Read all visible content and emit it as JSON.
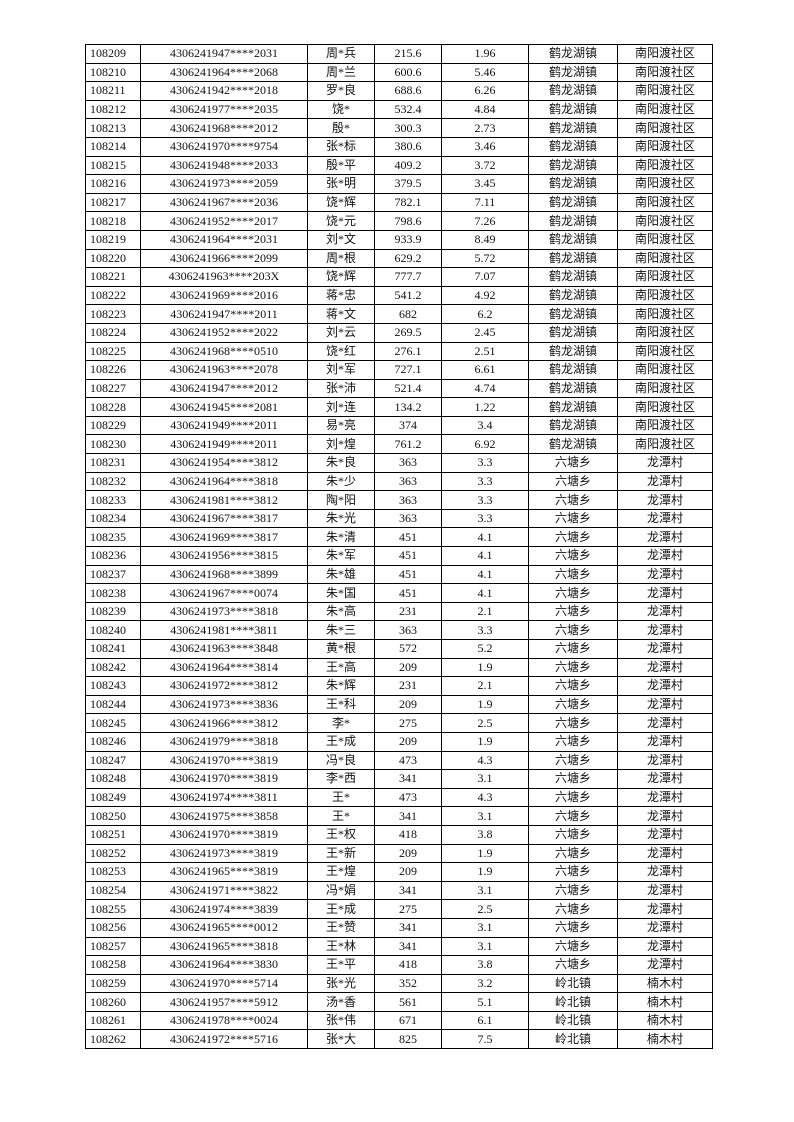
{
  "table": {
    "rows": [
      [
        "108209",
        "4306241947****2031",
        "周*兵",
        "215.6",
        "1.96",
        "鹤龙湖镇",
        "南阳渡社区"
      ],
      [
        "108210",
        "4306241964****2068",
        "周*兰",
        "600.6",
        "5.46",
        "鹤龙湖镇",
        "南阳渡社区"
      ],
      [
        "108211",
        "4306241942****2018",
        "罗*良",
        "688.6",
        "6.26",
        "鹤龙湖镇",
        "南阳渡社区"
      ],
      [
        "108212",
        "4306241977****2035",
        "饶*",
        "532.4",
        "4.84",
        "鹤龙湖镇",
        "南阳渡社区"
      ],
      [
        "108213",
        "4306241968****2012",
        "殷*",
        "300.3",
        "2.73",
        "鹤龙湖镇",
        "南阳渡社区"
      ],
      [
        "108214",
        "4306241970****9754",
        "张*标",
        "380.6",
        "3.46",
        "鹤龙湖镇",
        "南阳渡社区"
      ],
      [
        "108215",
        "4306241948****2033",
        "殷*平",
        "409.2",
        "3.72",
        "鹤龙湖镇",
        "南阳渡社区"
      ],
      [
        "108216",
        "4306241973****2059",
        "张*明",
        "379.5",
        "3.45",
        "鹤龙湖镇",
        "南阳渡社区"
      ],
      [
        "108217",
        "4306241967****2036",
        "饶*辉",
        "782.1",
        "7.11",
        "鹤龙湖镇",
        "南阳渡社区"
      ],
      [
        "108218",
        "4306241952****2017",
        "饶*元",
        "798.6",
        "7.26",
        "鹤龙湖镇",
        "南阳渡社区"
      ],
      [
        "108219",
        "4306241964****2031",
        "刘*文",
        "933.9",
        "8.49",
        "鹤龙湖镇",
        "南阳渡社区"
      ],
      [
        "108220",
        "4306241966****2099",
        "周*根",
        "629.2",
        "5.72",
        "鹤龙湖镇",
        "南阳渡社区"
      ],
      [
        "108221",
        "4306241963****203X",
        "饶*辉",
        "777.7",
        "7.07",
        "鹤龙湖镇",
        "南阳渡社区"
      ],
      [
        "108222",
        "4306241969****2016",
        "蒋*忠",
        "541.2",
        "4.92",
        "鹤龙湖镇",
        "南阳渡社区"
      ],
      [
        "108223",
        "4306241947****2011",
        "蒋*文",
        "682",
        "6.2",
        "鹤龙湖镇",
        "南阳渡社区"
      ],
      [
        "108224",
        "4306241952****2022",
        "刘*云",
        "269.5",
        "2.45",
        "鹤龙湖镇",
        "南阳渡社区"
      ],
      [
        "108225",
        "4306241968****0510",
        "饶*红",
        "276.1",
        "2.51",
        "鹤龙湖镇",
        "南阳渡社区"
      ],
      [
        "108226",
        "4306241963****2078",
        "刘*军",
        "727.1",
        "6.61",
        "鹤龙湖镇",
        "南阳渡社区"
      ],
      [
        "108227",
        "4306241947****2012",
        "张*沛",
        "521.4",
        "4.74",
        "鹤龙湖镇",
        "南阳渡社区"
      ],
      [
        "108228",
        "4306241945****2081",
        "刘*连",
        "134.2",
        "1.22",
        "鹤龙湖镇",
        "南阳渡社区"
      ],
      [
        "108229",
        "4306241949****2011",
        "易*亮",
        "374",
        "3.4",
        "鹤龙湖镇",
        "南阳渡社区"
      ],
      [
        "108230",
        "4306241949****2011",
        "刘*煌",
        "761.2",
        "6.92",
        "鹤龙湖镇",
        "南阳渡社区"
      ],
      [
        "108231",
        "4306241954****3812",
        "朱*良",
        "363",
        "3.3",
        "六塘乡",
        "龙潭村"
      ],
      [
        "108232",
        "4306241964****3818",
        "朱*少",
        "363",
        "3.3",
        "六塘乡",
        "龙潭村"
      ],
      [
        "108233",
        "4306241981****3812",
        "陶*阳",
        "363",
        "3.3",
        "六塘乡",
        "龙潭村"
      ],
      [
        "108234",
        "4306241967****3817",
        "朱*光",
        "363",
        "3.3",
        "六塘乡",
        "龙潭村"
      ],
      [
        "108235",
        "4306241969****3817",
        "朱*清",
        "451",
        "4.1",
        "六塘乡",
        "龙潭村"
      ],
      [
        "108236",
        "4306241956****3815",
        "朱*军",
        "451",
        "4.1",
        "六塘乡",
        "龙潭村"
      ],
      [
        "108237",
        "4306241968****3899",
        "朱*雄",
        "451",
        "4.1",
        "六塘乡",
        "龙潭村"
      ],
      [
        "108238",
        "4306241967****0074",
        "朱*国",
        "451",
        "4.1",
        "六塘乡",
        "龙潭村"
      ],
      [
        "108239",
        "4306241973****3818",
        "朱*高",
        "231",
        "2.1",
        "六塘乡",
        "龙潭村"
      ],
      [
        "108240",
        "4306241981****3811",
        "朱*三",
        "363",
        "3.3",
        "六塘乡",
        "龙潭村"
      ],
      [
        "108241",
        "4306241963****3848",
        "黄*根",
        "572",
        "5.2",
        "六塘乡",
        "龙潭村"
      ],
      [
        "108242",
        "4306241964****3814",
        "王*高",
        "209",
        "1.9",
        "六塘乡",
        "龙潭村"
      ],
      [
        "108243",
        "4306241972****3812",
        "朱*辉",
        "231",
        "2.1",
        "六塘乡",
        "龙潭村"
      ],
      [
        "108244",
        "4306241973****3836",
        "王*科",
        "209",
        "1.9",
        "六塘乡",
        "龙潭村"
      ],
      [
        "108245",
        "4306241966****3812",
        "李*",
        "275",
        "2.5",
        "六塘乡",
        "龙潭村"
      ],
      [
        "108246",
        "4306241979****3818",
        "王*成",
        "209",
        "1.9",
        "六塘乡",
        "龙潭村"
      ],
      [
        "108247",
        "4306241970****3819",
        "冯*良",
        "473",
        "4.3",
        "六塘乡",
        "龙潭村"
      ],
      [
        "108248",
        "4306241970****3819",
        "李*西",
        "341",
        "3.1",
        "六塘乡",
        "龙潭村"
      ],
      [
        "108249",
        "4306241974****3811",
        "王*",
        "473",
        "4.3",
        "六塘乡",
        "龙潭村"
      ],
      [
        "108250",
        "4306241975****3858",
        "王*",
        "341",
        "3.1",
        "六塘乡",
        "龙潭村"
      ],
      [
        "108251",
        "4306241970****3819",
        "王*权",
        "418",
        "3.8",
        "六塘乡",
        "龙潭村"
      ],
      [
        "108252",
        "4306241973****3819",
        "王*新",
        "209",
        "1.9",
        "六塘乡",
        "龙潭村"
      ],
      [
        "108253",
        "4306241965****3819",
        "王*煌",
        "209",
        "1.9",
        "六塘乡",
        "龙潭村"
      ],
      [
        "108254",
        "4306241971****3822",
        "冯*娟",
        "341",
        "3.1",
        "六塘乡",
        "龙潭村"
      ],
      [
        "108255",
        "4306241974****3839",
        "王*成",
        "275",
        "2.5",
        "六塘乡",
        "龙潭村"
      ],
      [
        "108256",
        "4306241965****0012",
        "王*赞",
        "341",
        "3.1",
        "六塘乡",
        "龙潭村"
      ],
      [
        "108257",
        "4306241965****3818",
        "王*林",
        "341",
        "3.1",
        "六塘乡",
        "龙潭村"
      ],
      [
        "108258",
        "4306241964****3830",
        "王*平",
        "418",
        "3.8",
        "六塘乡",
        "龙潭村"
      ],
      [
        "108259",
        "4306241970****5714",
        "张*光",
        "352",
        "3.2",
        "岭北镇",
        "楠木村"
      ],
      [
        "108260",
        "4306241957****5912",
        "汤*香",
        "561",
        "5.1",
        "岭北镇",
        "楠木村"
      ],
      [
        "108261",
        "4306241978****0024",
        "张*伟",
        "671",
        "6.1",
        "岭北镇",
        "楠木村"
      ],
      [
        "108262",
        "4306241972****5716",
        "张*大",
        "825",
        "7.5",
        "岭北镇",
        "楠木村"
      ]
    ]
  }
}
